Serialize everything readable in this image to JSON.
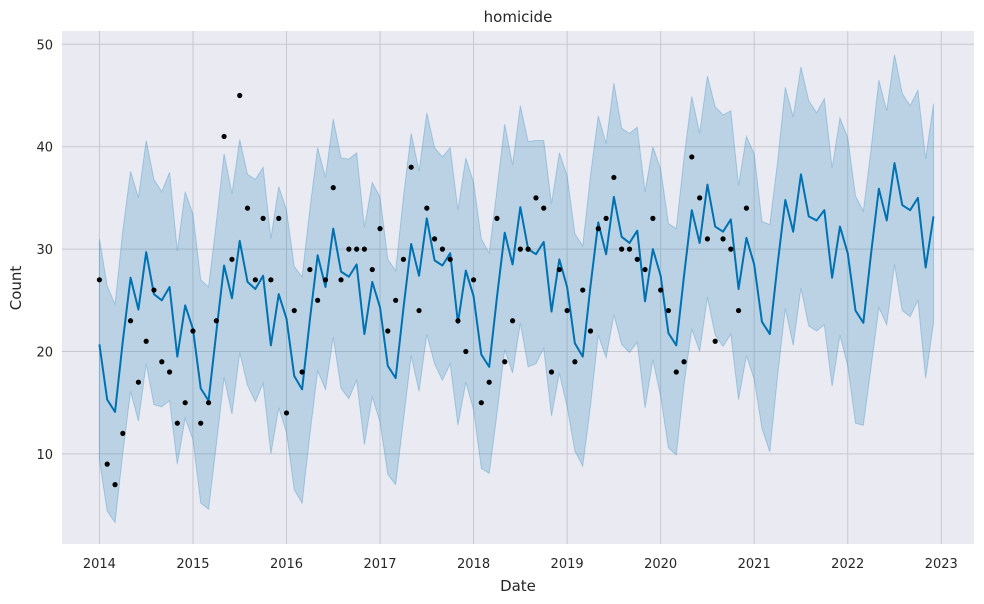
{
  "chart_data": {
    "type": "line",
    "title": "homicide",
    "xlabel": "Date",
    "ylabel": "Count",
    "xlim": [
      2013.6,
      2023.35
    ],
    "ylim": [
      1.2,
      51.3
    ],
    "grid": true,
    "x_ticks": [
      2014,
      2015,
      2016,
      2017,
      2018,
      2019,
      2020,
      2021,
      2022,
      2023
    ],
    "x_tick_labels": [
      "2014",
      "2015",
      "2016",
      "2017",
      "2018",
      "2019",
      "2020",
      "2021",
      "2022",
      "2023"
    ],
    "y_ticks": [
      10,
      20,
      30,
      40,
      50
    ],
    "y_tick_labels": [
      "10",
      "20",
      "30",
      "40",
      "50"
    ],
    "colors": {
      "background": "#eaeaf2",
      "forecast_line": "#0072b2",
      "uncertainty_band": "#0072b2",
      "observed_points": "#000000",
      "grid": "#c8c8d0"
    },
    "series": [
      {
        "kind": "observed",
        "points": [
          [
            2014.0,
            27
          ],
          [
            2014.083,
            9
          ],
          [
            2014.167,
            7
          ],
          [
            2014.25,
            12
          ],
          [
            2014.333,
            23
          ],
          [
            2014.417,
            17
          ],
          [
            2014.5,
            21
          ],
          [
            2014.583,
            26
          ],
          [
            2014.667,
            19
          ],
          [
            2014.75,
            18
          ],
          [
            2014.833,
            13
          ],
          [
            2014.917,
            15
          ],
          [
            2015.0,
            22
          ],
          [
            2015.083,
            13
          ],
          [
            2015.167,
            15
          ],
          [
            2015.25,
            23
          ],
          [
            2015.333,
            41
          ],
          [
            2015.417,
            29
          ],
          [
            2015.5,
            45
          ],
          [
            2015.583,
            34
          ],
          [
            2015.667,
            27
          ],
          [
            2015.75,
            33
          ],
          [
            2015.833,
            27
          ],
          [
            2015.917,
            33
          ],
          [
            2016.0,
            14
          ],
          [
            2016.083,
            24
          ],
          [
            2016.167,
            18
          ],
          [
            2016.25,
            28
          ],
          [
            2016.333,
            25
          ],
          [
            2016.417,
            27
          ],
          [
            2016.5,
            36
          ],
          [
            2016.583,
            27
          ],
          [
            2016.667,
            30
          ],
          [
            2016.75,
            30
          ],
          [
            2016.833,
            30
          ],
          [
            2016.917,
            28
          ],
          [
            2017.0,
            32
          ],
          [
            2017.083,
            22
          ],
          [
            2017.167,
            25
          ],
          [
            2017.25,
            29
          ],
          [
            2017.333,
            38
          ],
          [
            2017.417,
            24
          ],
          [
            2017.5,
            34
          ],
          [
            2017.583,
            31
          ],
          [
            2017.667,
            30
          ],
          [
            2017.75,
            29
          ],
          [
            2017.833,
            23
          ],
          [
            2017.917,
            20
          ],
          [
            2018.0,
            27
          ],
          [
            2018.083,
            15
          ],
          [
            2018.167,
            17
          ],
          [
            2018.25,
            33
          ],
          [
            2018.333,
            19
          ],
          [
            2018.417,
            23
          ],
          [
            2018.5,
            30
          ],
          [
            2018.583,
            30
          ],
          [
            2018.667,
            35
          ],
          [
            2018.75,
            34
          ],
          [
            2018.833,
            18
          ],
          [
            2018.917,
            28
          ],
          [
            2019.0,
            24
          ],
          [
            2019.083,
            19
          ],
          [
            2019.167,
            26
          ],
          [
            2019.25,
            22
          ],
          [
            2019.333,
            32
          ],
          [
            2019.417,
            33
          ],
          [
            2019.5,
            37
          ],
          [
            2019.583,
            30
          ],
          [
            2019.667,
            30
          ],
          [
            2019.75,
            29
          ],
          [
            2019.833,
            28
          ],
          [
            2019.917,
            33
          ],
          [
            2020.0,
            26
          ],
          [
            2020.083,
            24
          ],
          [
            2020.167,
            18
          ],
          [
            2020.25,
            19
          ],
          [
            2020.333,
            39
          ],
          [
            2020.417,
            35
          ],
          [
            2020.5,
            31
          ],
          [
            2020.583,
            21
          ],
          [
            2020.667,
            31
          ],
          [
            2020.75,
            30
          ],
          [
            2020.833,
            24
          ],
          [
            2020.917,
            34
          ]
        ]
      },
      {
        "kind": "forecast",
        "x": [
          2014.0,
          2014.083,
          2014.167,
          2014.25,
          2014.333,
          2014.417,
          2014.5,
          2014.583,
          2014.667,
          2014.75,
          2014.833,
          2014.917,
          2015.0,
          2015.083,
          2015.167,
          2015.25,
          2015.333,
          2015.417,
          2015.5,
          2015.583,
          2015.667,
          2015.75,
          2015.833,
          2015.917,
          2016.0,
          2016.083,
          2016.167,
          2016.25,
          2016.333,
          2016.417,
          2016.5,
          2016.583,
          2016.667,
          2016.75,
          2016.833,
          2016.917,
          2017.0,
          2017.083,
          2017.167,
          2017.25,
          2017.333,
          2017.417,
          2017.5,
          2017.583,
          2017.667,
          2017.75,
          2017.833,
          2017.917,
          2018.0,
          2018.083,
          2018.167,
          2018.25,
          2018.333,
          2018.417,
          2018.5,
          2018.583,
          2018.667,
          2018.75,
          2018.833,
          2018.917,
          2019.0,
          2019.083,
          2019.167,
          2019.25,
          2019.333,
          2019.417,
          2019.5,
          2019.583,
          2019.667,
          2019.75,
          2019.833,
          2019.917,
          2020.0,
          2020.083,
          2020.167,
          2020.25,
          2020.333,
          2020.417,
          2020.5,
          2020.583,
          2020.667,
          2020.75,
          2020.833,
          2020.917,
          2021.0,
          2021.083,
          2021.167,
          2021.25,
          2021.333,
          2021.417,
          2021.5,
          2021.583,
          2021.667,
          2021.75,
          2021.833,
          2021.917,
          2022.0,
          2022.083,
          2022.167,
          2022.25,
          2022.333,
          2022.417,
          2022.5,
          2022.583,
          2022.667,
          2022.75,
          2022.833,
          2022.917
        ],
        "yhat": [
          20.7,
          15.3,
          14.1,
          21.0,
          27.2,
          24.1,
          29.7,
          25.6,
          25.0,
          26.3,
          19.5,
          24.5,
          22.2,
          16.4,
          15.2,
          21.9,
          28.4,
          25.2,
          30.8,
          26.8,
          26.1,
          27.4,
          20.6,
          25.6,
          23.2,
          17.6,
          16.3,
          23.1,
          29.4,
          26.3,
          32.0,
          27.8,
          27.3,
          28.5,
          21.7,
          26.8,
          24.3,
          18.6,
          17.4,
          24.2,
          30.5,
          27.4,
          33.0,
          28.9,
          28.4,
          29.6,
          22.8,
          27.9,
          25.4,
          19.7,
          18.5,
          25.3,
          31.6,
          28.5,
          34.1,
          30.0,
          29.5,
          30.7,
          23.9,
          29.0,
          26.3,
          20.8,
          19.5,
          26.4,
          32.6,
          29.5,
          35.1,
          31.2,
          30.6,
          31.8,
          24.9,
          30.0,
          27.4,
          21.8,
          20.6,
          27.4,
          33.8,
          30.6,
          36.3,
          32.2,
          31.7,
          32.9,
          26.1,
          31.1,
          28.5,
          22.9,
          21.7,
          28.5,
          34.8,
          31.7,
          37.3,
          33.2,
          32.8,
          33.8,
          27.2,
          32.2,
          29.6,
          24.0,
          22.8,
          29.6,
          35.9,
          32.8,
          38.4,
          34.3,
          33.8,
          35.0,
          28.2,
          33.2
        ],
        "yhat_lower": [
          9.4,
          4.4,
          3.3,
          10.1,
          16.1,
          13.2,
          18.8,
          14.8,
          14.6,
          15.2,
          9.0,
          13.5,
          11.4,
          5.2,
          4.6,
          10.9,
          17.5,
          13.9,
          19.9,
          16.7,
          15.1,
          16.9,
          10.0,
          14.5,
          12.1,
          6.5,
          5.2,
          11.9,
          18.1,
          16.3,
          21.4,
          16.4,
          15.4,
          17.2,
          10.9,
          15.6,
          13.1,
          8.0,
          7.0,
          13.3,
          19.6,
          16.1,
          21.7,
          18.8,
          17.2,
          18.8,
          12.8,
          17.0,
          14.3,
          8.6,
          8.1,
          13.9,
          20.2,
          17.9,
          22.8,
          18.5,
          18.8,
          20.3,
          13.7,
          17.9,
          14.6,
          10.3,
          8.8,
          14.7,
          21.6,
          19.4,
          23.6,
          20.7,
          19.9,
          20.9,
          14.5,
          19.2,
          15.6,
          10.6,
          9.9,
          16.8,
          22.2,
          20.0,
          25.3,
          21.6,
          20.5,
          21.7,
          15.3,
          19.6,
          17.3,
          12.5,
          10.2,
          17.6,
          24.2,
          20.6,
          26.2,
          22.5,
          22.0,
          22.6,
          16.6,
          21.6,
          18.6,
          13.0,
          12.8,
          18.5,
          24.3,
          22.6,
          28.5,
          24.0,
          23.4,
          25.0,
          17.4,
          22.8
        ],
        "yhat_upper": [
          31.0,
          26.4,
          24.6,
          31.8,
          37.6,
          35.0,
          40.6,
          36.8,
          35.6,
          37.5,
          29.8,
          35.6,
          33.4,
          27.0,
          26.3,
          32.6,
          39.3,
          35.4,
          40.7,
          37.3,
          36.8,
          38.0,
          31.0,
          36.1,
          33.8,
          28.3,
          27.3,
          33.9,
          39.9,
          37.0,
          42.7,
          38.9,
          38.8,
          39.4,
          32.1,
          36.5,
          35.1,
          29.0,
          27.9,
          35.1,
          41.3,
          37.6,
          43.3,
          39.9,
          39.0,
          39.9,
          33.8,
          38.9,
          36.5,
          31.0,
          29.6,
          35.8,
          42.2,
          38.2,
          44.0,
          40.5,
          40.6,
          40.6,
          34.4,
          39.4,
          37.2,
          31.5,
          30.3,
          37.2,
          43.0,
          40.3,
          46.2,
          41.8,
          41.3,
          41.9,
          35.6,
          40.0,
          37.8,
          32.5,
          32.0,
          38.9,
          44.9,
          41.3,
          46.9,
          43.9,
          43.1,
          43.5,
          36.2,
          41.0,
          39.3,
          32.7,
          32.4,
          38.5,
          45.8,
          42.9,
          47.8,
          44.5,
          43.3,
          44.7,
          37.9,
          42.8,
          40.9,
          35.2,
          33.7,
          39.8,
          46.5,
          43.5,
          49.0,
          45.2,
          44.0,
          45.5,
          38.8,
          44.2
        ]
      }
    ]
  }
}
